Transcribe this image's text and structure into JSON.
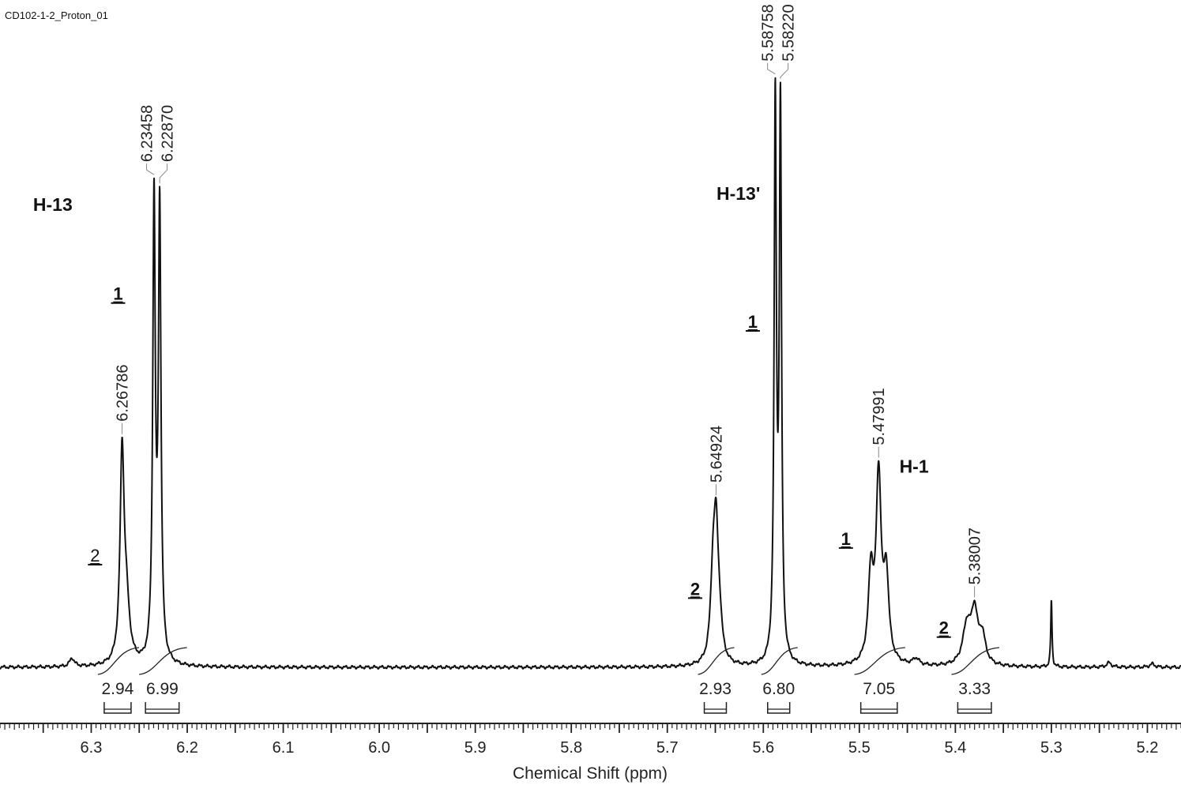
{
  "header": {
    "experiment": "CD102-1-2_Proton_01"
  },
  "chart_data": {
    "type": "line",
    "title": "",
    "xlabel": "Chemical Shift (ppm)",
    "ylabel": "",
    "xlim": [
      6.395,
      5.165
    ],
    "x_reversed": true,
    "x_ticks": [
      "6.3",
      "6.2",
      "6.1",
      "6.0",
      "5.9",
      "5.8",
      "5.7",
      "5.6",
      "5.5",
      "5.4",
      "5.3",
      "5.2"
    ],
    "peaks": [
      {
        "ppm": 6.32,
        "height": 0.015
      },
      {
        "ppm": 6.26786,
        "height": 0.365,
        "width": 0.0025
      },
      {
        "ppm": 6.2635,
        "height": 0.1,
        "width": 0.004
      },
      {
        "ppm": 6.23458,
        "height": 0.82,
        "width": 0.0016
      },
      {
        "ppm": 6.2287,
        "height": 0.805,
        "width": 0.0016
      },
      {
        "ppm": 5.6525,
        "height": 0.13,
        "width": 0.003
      },
      {
        "ppm": 5.64924,
        "height": 0.22,
        "width": 0.003
      },
      {
        "ppm": 5.6455,
        "height": 0.05,
        "width": 0.003
      },
      {
        "ppm": 5.58758,
        "height": 0.995,
        "width": 0.0014
      },
      {
        "ppm": 5.5822,
        "height": 0.985,
        "width": 0.0014
      },
      {
        "ppm": 5.488,
        "height": 0.155,
        "width": 0.0032
      },
      {
        "ppm": 5.47991,
        "height": 0.33,
        "width": 0.0032
      },
      {
        "ppm": 5.472,
        "height": 0.15,
        "width": 0.0032
      },
      {
        "ppm": 5.441,
        "height": 0.012,
        "width": 0.004
      },
      {
        "ppm": 5.388,
        "height": 0.07,
        "width": 0.005
      },
      {
        "ppm": 5.38007,
        "height": 0.09,
        "width": 0.004
      },
      {
        "ppm": 5.372,
        "height": 0.05,
        "width": 0.004
      },
      {
        "ppm": 5.3,
        "height": 0.12,
        "width": 0.0008
      },
      {
        "ppm": 5.24,
        "height": 0.008,
        "width": 0.003
      },
      {
        "ppm": 5.195,
        "height": 0.006,
        "width": 0.003
      }
    ],
    "peak_labels": [
      {
        "ppm": 6.26786,
        "text": "6.26786"
      },
      {
        "ppm": 6.23458,
        "text": "6.23458"
      },
      {
        "ppm": 6.2287,
        "text": "6.22870"
      },
      {
        "ppm": 5.64924,
        "text": "5.64924"
      },
      {
        "ppm": 5.58758,
        "text": "5.58758"
      },
      {
        "ppm": 5.5822,
        "text": "5.58220"
      },
      {
        "ppm": 5.47991,
        "text": "5.47991"
      },
      {
        "ppm": 5.38007,
        "text": "5.38007"
      }
    ],
    "integrals": [
      {
        "from": 6.2865,
        "to": 6.2585,
        "value": "2.94"
      },
      {
        "from": 6.2435,
        "to": 6.2085,
        "value": "6.99"
      },
      {
        "from": 5.6615,
        "to": 5.6385,
        "value": "2.93"
      },
      {
        "from": 5.5955,
        "to": 5.5725,
        "value": "6.80"
      },
      {
        "from": 5.4985,
        "to": 5.4605,
        "value": "7.05"
      },
      {
        "from": 5.3975,
        "to": 5.3625,
        "value": "3.33"
      }
    ],
    "annotations": [
      {
        "text": "H-13",
        "ppm": 6.34,
        "level": 0.82,
        "bold": true,
        "underline": false
      },
      {
        "text": "1",
        "ppm": 6.272,
        "level": 0.66,
        "bold": true,
        "underline": true
      },
      {
        "text": "2",
        "ppm": 6.296,
        "level": 0.19,
        "bold": false,
        "underline": true
      },
      {
        "text": "H-13'",
        "ppm": 5.626,
        "level": 0.84,
        "bold": true,
        "underline": false
      },
      {
        "text": "1",
        "ppm": 5.611,
        "level": 0.61,
        "bold": true,
        "underline": true
      },
      {
        "text": "2",
        "ppm": 5.671,
        "level": 0.13,
        "bold": true,
        "underline": true
      },
      {
        "text": "1",
        "ppm": 5.514,
        "level": 0.22,
        "bold": true,
        "underline": true
      },
      {
        "text": "H-1",
        "ppm": 5.443,
        "level": 0.35,
        "bold": true,
        "underline": false
      },
      {
        "text": "2",
        "ppm": 5.412,
        "level": 0.06,
        "bold": true,
        "underline": true
      }
    ]
  }
}
